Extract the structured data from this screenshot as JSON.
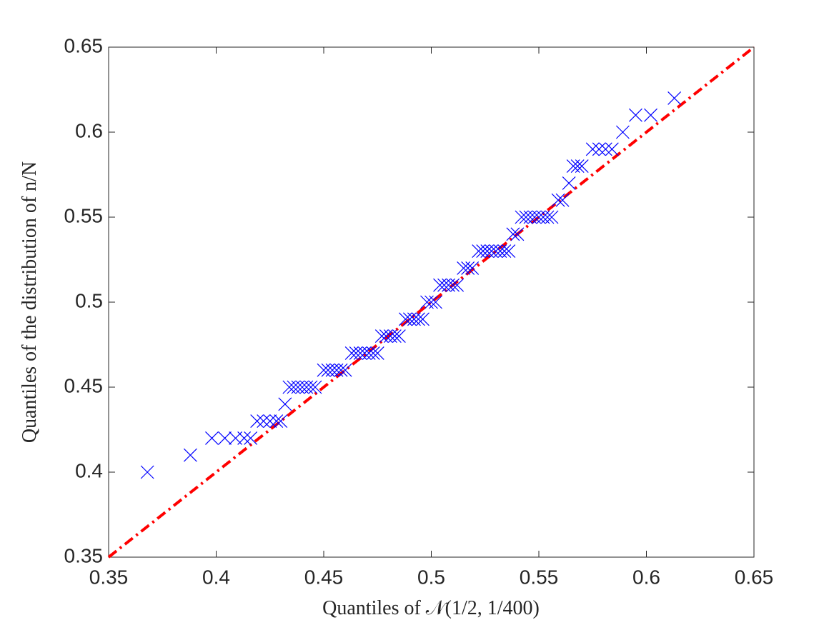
{
  "chart_data": {
    "type": "scatter",
    "xlabel": "Quantiles of 𝒩(1/2, 1/400)",
    "ylabel": "Quantiles of the distribution of n/N",
    "xlim": [
      0.35,
      0.65
    ],
    "ylim": [
      0.35,
      0.65
    ],
    "xticks": [
      0.35,
      0.4,
      0.45,
      0.5,
      0.55,
      0.6,
      0.65
    ],
    "yticks": [
      0.35,
      0.4,
      0.45,
      0.5,
      0.55,
      0.6,
      0.65
    ],
    "series": [
      {
        "color": "#0000ff",
        "x": [
          0.368,
          0.388,
          0.398,
          0.404,
          0.409,
          0.413,
          0.416,
          0.419,
          0.422,
          0.425,
          0.428,
          0.43,
          0.432,
          0.434,
          0.436,
          0.438,
          0.44,
          0.442,
          0.444,
          0.446,
          0.45,
          0.452,
          0.454,
          0.456,
          0.458,
          0.46,
          0.463,
          0.465,
          0.467,
          0.469,
          0.471,
          0.473,
          0.475,
          0.477,
          0.479,
          0.481,
          0.483,
          0.485,
          0.488,
          0.49,
          0.492,
          0.494,
          0.496,
          0.498,
          0.5,
          0.502,
          0.504,
          0.506,
          0.508,
          0.51,
          0.512,
          0.515,
          0.517,
          0.519,
          0.522,
          0.524,
          0.526,
          0.528,
          0.53,
          0.532,
          0.534,
          0.536,
          0.538,
          0.54,
          0.542,
          0.544,
          0.546,
          0.548,
          0.55,
          0.552,
          0.554,
          0.556,
          0.559,
          0.561,
          0.564,
          0.566,
          0.568,
          0.57,
          0.575,
          0.578,
          0.581,
          0.584,
          0.589,
          0.595,
          0.602,
          0.613
        ],
        "y": [
          0.4,
          0.41,
          0.42,
          0.42,
          0.42,
          0.42,
          0.42,
          0.43,
          0.43,
          0.43,
          0.43,
          0.43,
          0.44,
          0.45,
          0.45,
          0.45,
          0.45,
          0.45,
          0.45,
          0.45,
          0.46,
          0.46,
          0.46,
          0.46,
          0.46,
          0.46,
          0.47,
          0.47,
          0.47,
          0.47,
          0.47,
          0.47,
          0.47,
          0.48,
          0.48,
          0.48,
          0.48,
          0.48,
          0.49,
          0.49,
          0.49,
          0.49,
          0.49,
          0.5,
          0.5,
          0.5,
          0.51,
          0.51,
          0.51,
          0.51,
          0.51,
          0.52,
          0.52,
          0.52,
          0.53,
          0.53,
          0.53,
          0.53,
          0.53,
          0.53,
          0.53,
          0.53,
          0.54,
          0.54,
          0.55,
          0.55,
          0.55,
          0.55,
          0.55,
          0.55,
          0.55,
          0.55,
          0.56,
          0.56,
          0.57,
          0.58,
          0.58,
          0.58,
          0.59,
          0.59,
          0.59,
          0.59,
          0.6,
          0.61,
          0.61,
          0.62
        ]
      }
    ],
    "reference_line": {
      "x": [
        0.35,
        0.65
      ],
      "y": [
        0.35,
        0.65
      ],
      "color": "#ff0000"
    }
  }
}
